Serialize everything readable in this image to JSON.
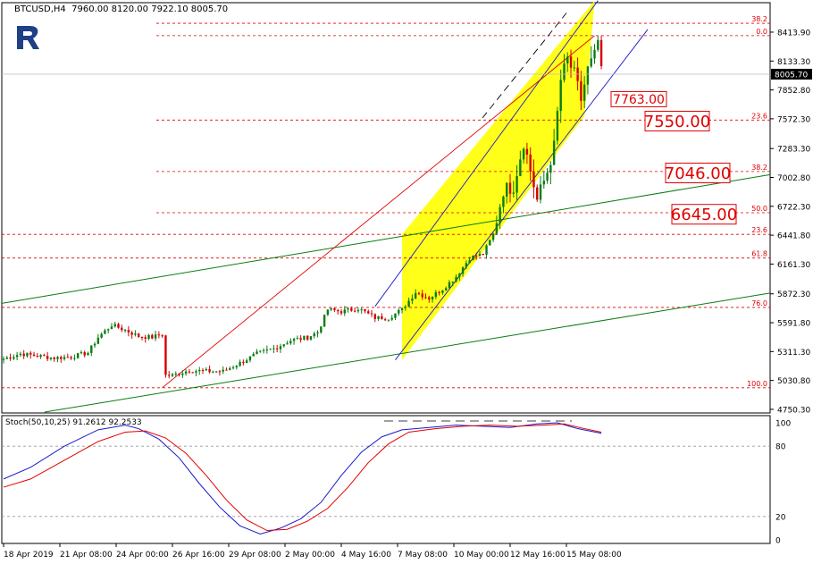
{
  "header": {
    "symbol_line": "BTCUSD,H4  7960.00 8120.00 7922.10 8005.70"
  },
  "logo": {
    "name": "brand-logo-icon"
  },
  "colors": {
    "bull": "#0a7d12",
    "bear": "#d40000",
    "channel_fill": "#ffff00",
    "channel_line": "#1a1acd",
    "trend_green": "#0a7d12",
    "fib_red": "#e00000",
    "stoch_main": "#1a1acd",
    "stoch_signal": "#e00000"
  },
  "chart_data": [
    {
      "type": "candlestick",
      "ylim": [
        4750,
        8700
      ],
      "y_ticks": [
        "8413.90",
        "8133.30",
        "7852.80",
        "7572.30",
        "7283.30",
        "7002.80",
        "6722.30",
        "6441.80",
        "6161.30",
        "5872.30",
        "5591.80",
        "5311.30",
        "5030.80",
        "4750.30"
      ],
      "x_ticks": [
        "18 Apr 2019",
        "21 Apr 08:00",
        "24 Apr 00:00",
        "26 Apr 16:00",
        "29 Apr 08:00",
        "2 May 00:00",
        "4 May 16:00",
        "7 May 08:00",
        "10 May 00:00",
        "12 May 16:00",
        "15 May 08:00"
      ],
      "current_price": "8005.70",
      "price_labels": [
        {
          "value": 7763.0,
          "text": "7763.00",
          "size": "small"
        },
        {
          "value": 7550.0,
          "text": "7550.00",
          "size": "large"
        },
        {
          "value": 7046.0,
          "text": "7046.00",
          "size": "large"
        },
        {
          "value": 6645.0,
          "text": "6645.00",
          "size": "large"
        }
      ],
      "fib_levels": [
        {
          "label": "38.2",
          "value": 8500
        },
        {
          "label": "0.0",
          "value": 8380
        },
        {
          "label": "23.6",
          "value": 7560
        },
        {
          "label": "38.2",
          "value": 7060
        },
        {
          "label": "50.0",
          "value": 6660
        },
        {
          "label": "23.6",
          "value": 6450
        },
        {
          "label": "61.8",
          "value": 6220
        },
        {
          "label": "76.0",
          "value": 5740
        },
        {
          "label": "100.0",
          "value": 4960
        }
      ],
      "anchors": [
        {
          "i": 0,
          "v": 5240
        },
        {
          "i": 5,
          "v": 5290
        },
        {
          "i": 10,
          "v": 5270
        },
        {
          "i": 15,
          "v": 5250
        },
        {
          "i": 20,
          "v": 5260
        },
        {
          "i": 25,
          "v": 5300
        },
        {
          "i": 28,
          "v": 5450
        },
        {
          "i": 32,
          "v": 5570
        },
        {
          "i": 36,
          "v": 5520
        },
        {
          "i": 40,
          "v": 5460
        },
        {
          "i": 44,
          "v": 5450
        },
        {
          "i": 47,
          "v": 5480
        },
        {
          "i": 48,
          "v": 5080
        },
        {
          "i": 50,
          "v": 5080
        },
        {
          "i": 55,
          "v": 5130
        },
        {
          "i": 60,
          "v": 5120
        },
        {
          "i": 65,
          "v": 5120
        },
        {
          "i": 70,
          "v": 5200
        },
        {
          "i": 75,
          "v": 5290
        },
        {
          "i": 80,
          "v": 5340
        },
        {
          "i": 85,
          "v": 5420
        },
        {
          "i": 90,
          "v": 5450
        },
        {
          "i": 93,
          "v": 5500
        },
        {
          "i": 96,
          "v": 5720
        },
        {
          "i": 100,
          "v": 5700
        },
        {
          "i": 105,
          "v": 5730
        },
        {
          "i": 110,
          "v": 5640
        },
        {
          "i": 114,
          "v": 5640
        },
        {
          "i": 118,
          "v": 5720
        },
        {
          "i": 122,
          "v": 5890
        },
        {
          "i": 126,
          "v": 5830
        },
        {
          "i": 130,
          "v": 5920
        },
        {
          "i": 134,
          "v": 6040
        },
        {
          "i": 138,
          "v": 6220
        },
        {
          "i": 142,
          "v": 6260
        },
        {
          "i": 145,
          "v": 6450
        },
        {
          "i": 148,
          "v": 6880
        },
        {
          "i": 151,
          "v": 6920
        },
        {
          "i": 154,
          "v": 7350
        },
        {
          "i": 156,
          "v": 7070
        },
        {
          "i": 158,
          "v": 6780
        },
        {
          "i": 161,
          "v": 7060
        },
        {
          "i": 163,
          "v": 7300
        },
        {
          "i": 165,
          "v": 7950
        },
        {
          "i": 167,
          "v": 8150
        },
        {
          "i": 169,
          "v": 8000
        },
        {
          "i": 171,
          "v": 7760
        },
        {
          "i": 173,
          "v": 8050
        },
        {
          "i": 175,
          "v": 8180
        },
        {
          "i": 176,
          "v": 8330
        },
        {
          "i": 177,
          "v": 8010
        }
      ],
      "candle_count": 178
    },
    {
      "type": "line",
      "title": "Stoch(50,10,25) 91.2612 92.2533",
      "ylim": [
        0,
        100
      ],
      "y_ticks": [
        "100",
        "80",
        "20",
        "0"
      ],
      "series": [
        {
          "name": "main",
          "points": [
            [
              0,
              52
            ],
            [
              8,
              62
            ],
            [
              18,
              80
            ],
            [
              28,
              94
            ],
            [
              36,
              98
            ],
            [
              40,
              95
            ],
            [
              46,
              86
            ],
            [
              52,
              70
            ],
            [
              58,
              48
            ],
            [
              64,
              28
            ],
            [
              70,
              12
            ],
            [
              76,
              5
            ],
            [
              82,
              10
            ],
            [
              88,
              18
            ],
            [
              94,
              32
            ],
            [
              100,
              55
            ],
            [
              106,
              75
            ],
            [
              112,
              88
            ],
            [
              118,
              94
            ],
            [
              126,
              96
            ],
            [
              134,
              98
            ],
            [
              142,
              97
            ],
            [
              150,
              96
            ],
            [
              158,
              99
            ],
            [
              164,
              100
            ],
            [
              170,
              95
            ],
            [
              177,
              91
            ]
          ]
        },
        {
          "name": "signal",
          "points": [
            [
              0,
              45
            ],
            [
              8,
              52
            ],
            [
              18,
              68
            ],
            [
              28,
              84
            ],
            [
              36,
              92
            ],
            [
              42,
              93
            ],
            [
              48,
              87
            ],
            [
              54,
              74
            ],
            [
              60,
              55
            ],
            [
              66,
              34
            ],
            [
              72,
              17
            ],
            [
              78,
              8
            ],
            [
              84,
              9
            ],
            [
              90,
              16
            ],
            [
              96,
              27
            ],
            [
              102,
              45
            ],
            [
              108,
              66
            ],
            [
              114,
              82
            ],
            [
              120,
              92
            ],
            [
              128,
              95
            ],
            [
              136,
              97
            ],
            [
              144,
              98
            ],
            [
              152,
              97
            ],
            [
              160,
              98
            ],
            [
              166,
              99
            ],
            [
              172,
              95
            ],
            [
              177,
              92
            ]
          ]
        }
      ]
    }
  ]
}
